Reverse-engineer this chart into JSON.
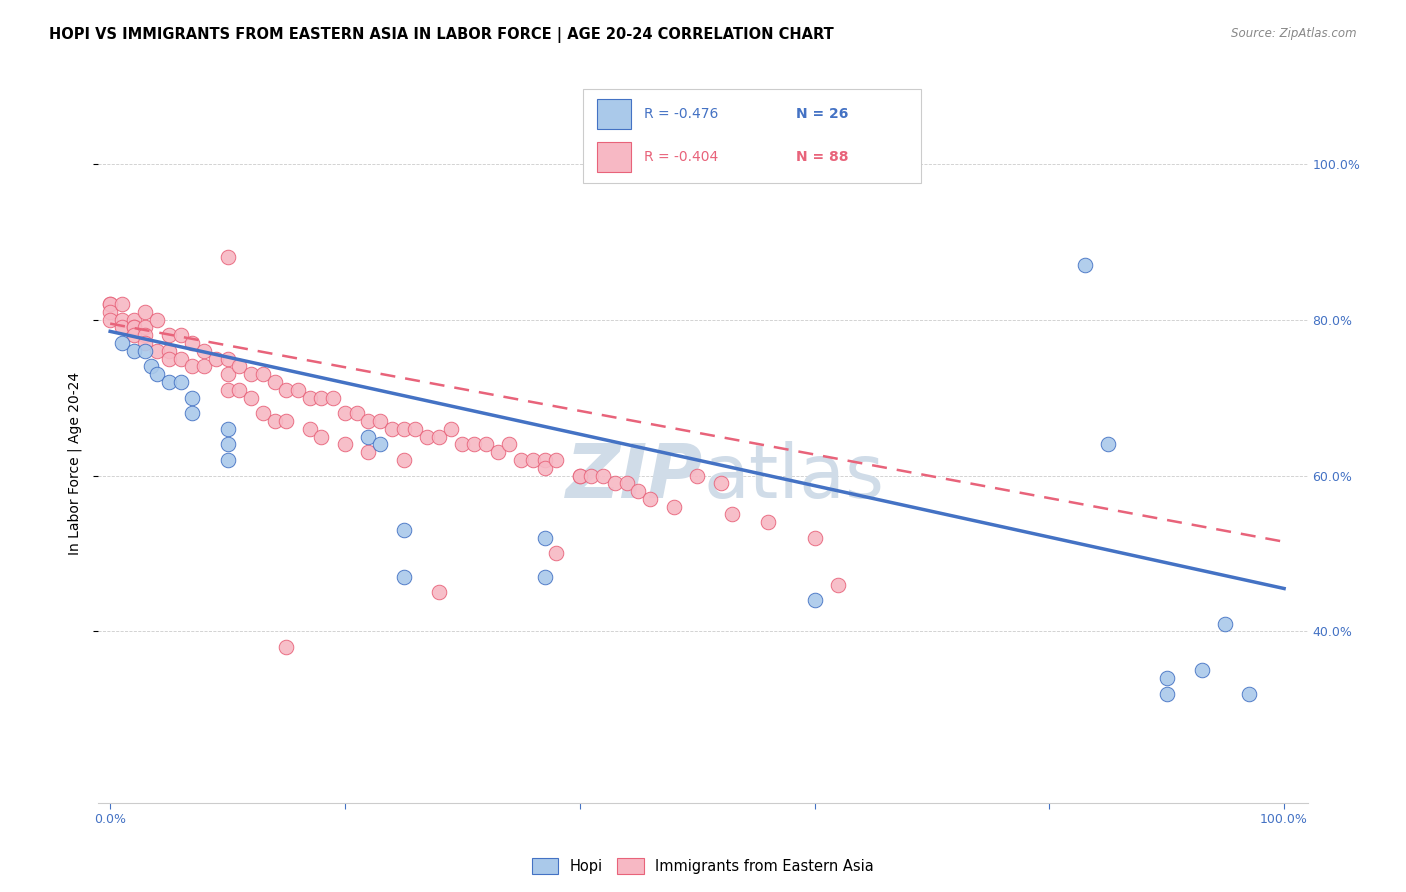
{
  "title": "HOPI VS IMMIGRANTS FROM EASTERN ASIA IN LABOR FORCE | AGE 20-24 CORRELATION CHART",
  "source_text": "Source: ZipAtlas.com",
  "ylabel": "In Labor Force | Age 20-24",
  "legend_hopi": "Hopi",
  "legend_immigrants": "Immigrants from Eastern Asia",
  "legend_r_hopi": "-0.476",
  "legend_n_hopi": "26",
  "legend_r_immigrants": "-0.404",
  "legend_n_immigrants": "88",
  "hopi_color": "#aac9ea",
  "immigrants_color": "#f7b8c4",
  "hopi_line_color": "#4472c4",
  "immigrants_line_color": "#e8637a",
  "watermark_color": "#d0dce8",
  "xlim": [
    -0.01,
    1.02
  ],
  "ylim": [
    0.18,
    1.05
  ],
  "xticks": [
    0.0,
    0.2,
    0.4,
    0.6,
    0.8,
    1.0
  ],
  "xticklabels": [
    "0.0%",
    "",
    "",
    "",
    "",
    "100.0%"
  ],
  "yticks": [
    0.4,
    0.6,
    0.8,
    1.0
  ],
  "yticklabels": [
    "40.0%",
    "60.0%",
    "80.0%",
    "100.0%"
  ],
  "hopi_x": [
    0.01,
    0.02,
    0.03,
    0.035,
    0.04,
    0.05,
    0.06,
    0.07,
    0.07,
    0.1,
    0.1,
    0.1,
    0.22,
    0.23,
    0.25,
    0.25,
    0.37,
    0.37,
    0.6,
    0.83,
    0.85,
    0.9,
    0.9,
    0.93,
    0.95,
    0.97
  ],
  "hopi_y": [
    0.77,
    0.76,
    0.76,
    0.74,
    0.73,
    0.72,
    0.72,
    0.7,
    0.68,
    0.66,
    0.64,
    0.62,
    0.65,
    0.64,
    0.53,
    0.47,
    0.52,
    0.47,
    0.44,
    0.87,
    0.64,
    0.34,
    0.32,
    0.35,
    0.41,
    0.32
  ],
  "immigrants_x": [
    0.0,
    0.0,
    0.0,
    0.0,
    0.01,
    0.01,
    0.01,
    0.02,
    0.02,
    0.02,
    0.02,
    0.03,
    0.03,
    0.03,
    0.03,
    0.04,
    0.04,
    0.05,
    0.05,
    0.05,
    0.06,
    0.06,
    0.07,
    0.07,
    0.08,
    0.08,
    0.09,
    0.1,
    0.1,
    0.1,
    0.11,
    0.11,
    0.12,
    0.12,
    0.13,
    0.13,
    0.14,
    0.14,
    0.15,
    0.15,
    0.15,
    0.16,
    0.17,
    0.17,
    0.18,
    0.18,
    0.19,
    0.2,
    0.2,
    0.21,
    0.22,
    0.22,
    0.23,
    0.24,
    0.25,
    0.25,
    0.26,
    0.27,
    0.28,
    0.29,
    0.3,
    0.31,
    0.32,
    0.33,
    0.34,
    0.35,
    0.36,
    0.37,
    0.37,
    0.38,
    0.4,
    0.4,
    0.41,
    0.42,
    0.43,
    0.44,
    0.45,
    0.46,
    0.48,
    0.5,
    0.52,
    0.53,
    0.56,
    0.6,
    0.62,
    0.28,
    0.38,
    0.1
  ],
  "immigrants_y": [
    0.82,
    0.82,
    0.81,
    0.8,
    0.82,
    0.8,
    0.79,
    0.8,
    0.79,
    0.79,
    0.78,
    0.81,
    0.79,
    0.78,
    0.77,
    0.8,
    0.76,
    0.78,
    0.76,
    0.75,
    0.78,
    0.75,
    0.77,
    0.74,
    0.76,
    0.74,
    0.75,
    0.75,
    0.73,
    0.71,
    0.74,
    0.71,
    0.73,
    0.7,
    0.73,
    0.68,
    0.72,
    0.67,
    0.71,
    0.67,
    0.38,
    0.71,
    0.7,
    0.66,
    0.7,
    0.65,
    0.7,
    0.68,
    0.64,
    0.68,
    0.67,
    0.63,
    0.67,
    0.66,
    0.66,
    0.62,
    0.66,
    0.65,
    0.65,
    0.66,
    0.64,
    0.64,
    0.64,
    0.63,
    0.64,
    0.62,
    0.62,
    0.62,
    0.61,
    0.62,
    0.6,
    0.6,
    0.6,
    0.6,
    0.59,
    0.59,
    0.58,
    0.57,
    0.56,
    0.6,
    0.59,
    0.55,
    0.54,
    0.52,
    0.46,
    0.45,
    0.5,
    0.88
  ]
}
